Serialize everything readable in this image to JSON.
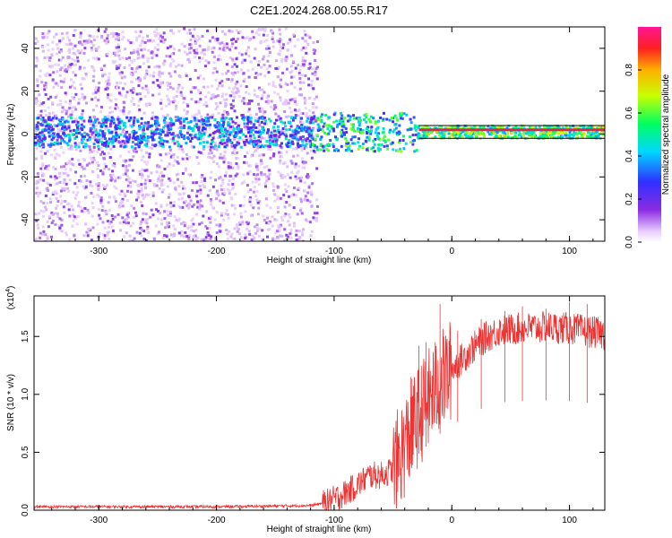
{
  "title": "C2E1.2024.268.00.55.R17",
  "colors": {
    "snr_line": "#ee3333",
    "core_line": "#dd2255",
    "axis": "#000000"
  },
  "colorbar": {
    "label": "Normalized spectral amplitude",
    "ticks": [
      "0.0",
      "0.2",
      "0.4",
      "0.6",
      "0.8"
    ],
    "range": [
      0,
      1
    ]
  },
  "chart_data": [
    {
      "type": "heatmap",
      "xlabel": "Height of straight line (km)",
      "ylabel": "Frequency (Hz)",
      "xlim": [
        -355,
        130
      ],
      "ylim": [
        -50,
        50
      ],
      "xticks": [
        -300,
        -200,
        -100,
        0,
        100
      ],
      "xtick_labels": [
        "-300",
        "-200",
        "-100",
        "0",
        "100"
      ],
      "yticks": [
        -40,
        -20,
        0,
        20,
        40
      ],
      "ytick_labels": [
        "-40",
        "-20",
        "0",
        "20",
        "40"
      ],
      "noise_extent_km": [
        -355,
        -115
      ],
      "core_band_hz": [
        -2,
        4
      ],
      "core_line_hz": 2,
      "core_line_from_km": -28
    },
    {
      "type": "line",
      "xlabel": "Height of straight line (km)",
      "ylabel": "SNR (10 * v/v)",
      "y_multiplier_label": "(x10",
      "y_multiplier_exp": "4",
      "xlim": [
        -355,
        130
      ],
      "ylim": [
        0,
        1.85
      ],
      "xticks": [
        -300,
        -200,
        -100,
        0,
        100
      ],
      "xtick_labels": [
        "-300",
        "-200",
        "-100",
        "0",
        "100"
      ],
      "yticks": [
        0,
        0.5,
        1.0,
        1.5
      ],
      "ytick_labels": [
        "0.0",
        "0.5",
        "1.0",
        "1.5"
      ],
      "trend_points": [
        [
          -355,
          0.03
        ],
        [
          -200,
          0.03
        ],
        [
          -120,
          0.04
        ],
        [
          -105,
          0.07
        ],
        [
          -90,
          0.15
        ],
        [
          -80,
          0.22
        ],
        [
          -70,
          0.3
        ],
        [
          -60,
          0.3
        ],
        [
          -50,
          0.35
        ],
        [
          -40,
          0.55
        ],
        [
          -30,
          0.78
        ],
        [
          -20,
          0.95
        ],
        [
          -10,
          1.1
        ],
        [
          0,
          1.22
        ],
        [
          10,
          1.32
        ],
        [
          20,
          1.42
        ],
        [
          30,
          1.5
        ],
        [
          40,
          1.55
        ],
        [
          60,
          1.57
        ],
        [
          80,
          1.58
        ],
        [
          100,
          1.57
        ],
        [
          130,
          1.52
        ]
      ],
      "spikes": [
        [
          -35,
          1.15
        ],
        [
          -28,
          1.42
        ],
        [
          -22,
          1.45
        ],
        [
          -10,
          1.78
        ],
        [
          5,
          1.55
        ],
        [
          25,
          1.65
        ],
        [
          45,
          1.72
        ],
        [
          60,
          1.76
        ],
        [
          80,
          1.74
        ],
        [
          100,
          1.8
        ],
        [
          115,
          1.78
        ]
      ]
    }
  ]
}
